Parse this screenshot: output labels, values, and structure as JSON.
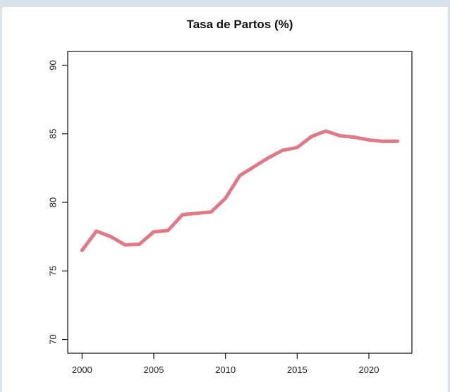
{
  "chart_data": {
    "type": "line",
    "title": "Tasa de Partos (%)",
    "xlabel": "",
    "ylabel": "",
    "xlim": [
      1999,
      2023
    ],
    "ylim": [
      69,
      91
    ],
    "x_ticks": [
      2000,
      2005,
      2010,
      2015,
      2020
    ],
    "y_ticks": [
      70,
      75,
      80,
      85,
      90
    ],
    "grid": false,
    "series": [
      {
        "color": "#e07a86",
        "x": [
          2000,
          2001,
          2002,
          2003,
          2004,
          2005,
          2006,
          2007,
          2008,
          2009,
          2010,
          2011,
          2012,
          2013,
          2014,
          2015,
          2016,
          2017,
          2018,
          2019,
          2020,
          2021,
          2022
        ],
        "y": [
          76.5,
          77.9,
          77.5,
          76.9,
          76.95,
          77.85,
          77.95,
          79.1,
          79.2,
          79.3,
          80.3,
          81.95,
          82.6,
          83.25,
          83.8,
          84.0,
          84.8,
          85.2,
          84.85,
          84.75,
          84.55,
          84.45,
          84.45
        ]
      }
    ]
  }
}
